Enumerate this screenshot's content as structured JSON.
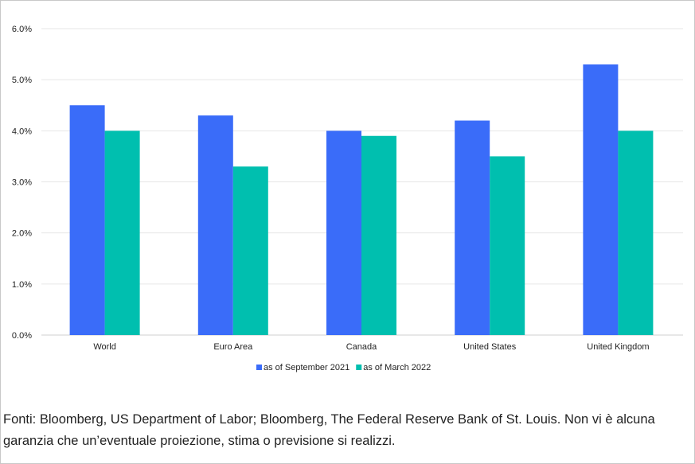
{
  "chart_data": {
    "type": "bar",
    "categories": [
      "World",
      "Euro Area",
      "Canada",
      "United States",
      "United Kingdom"
    ],
    "series": [
      {
        "name": "as of September 2021",
        "color": "#3a6cf9",
        "values": [
          4.5,
          4.3,
          4.0,
          4.2,
          5.3
        ]
      },
      {
        "name": "as of March 2022",
        "color": "#00bfaf",
        "values": [
          4.0,
          3.3,
          3.9,
          3.5,
          4.0
        ]
      }
    ],
    "yticks": [
      "0.0%",
      "1.0%",
      "2.0%",
      "3.0%",
      "4.0%",
      "5.0%",
      "6.0%"
    ],
    "ylim": [
      0,
      6
    ],
    "grid": true,
    "legend_position": "bottom-center"
  },
  "source_note": "Fonti: Bloomberg, US Department of Labor; Bloomberg, The Federal Reserve Bank of St. Louis. Non vi è alcuna garanzia che un’eventuale proiezione, stima o previsione si realizzi."
}
